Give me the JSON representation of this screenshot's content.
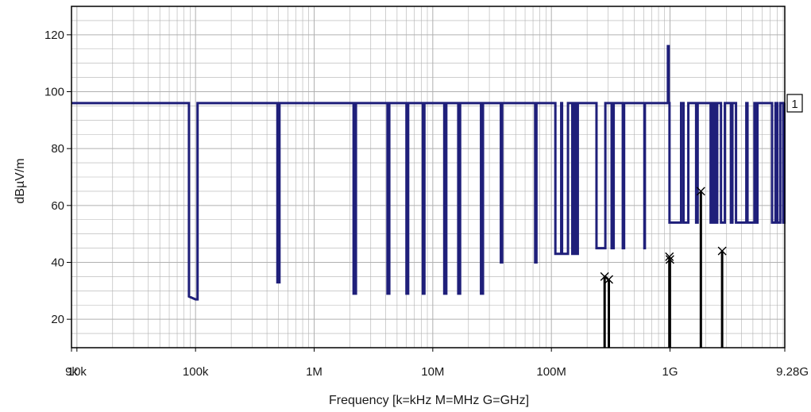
{
  "chart_data": {
    "type": "line",
    "xlabel": "Frequency [k=kHz M=MHz G=GHz]",
    "ylabel": "dBµV/m",
    "x_scale": "log",
    "xlim": [
      9000,
      9280000000
    ],
    "ylim": [
      10,
      130
    ],
    "x_ticks": [
      {
        "value": 9000,
        "label": "9k"
      },
      {
        "value": 10000,
        "label": "10k"
      },
      {
        "value": 100000,
        "label": "100k"
      },
      {
        "value": 1000000,
        "label": "1M"
      },
      {
        "value": 10000000,
        "label": "10M"
      },
      {
        "value": 100000000,
        "label": "100M"
      },
      {
        "value": 1000000000,
        "label": "1G"
      },
      {
        "value": 9280000000,
        "label": "9.28G"
      }
    ],
    "y_ticks": [
      20,
      40,
      60,
      80,
      100,
      120
    ],
    "grid": true,
    "limit_label": "1",
    "colors": {
      "limit": "#1f1f7a",
      "measurement": "#000000",
      "grid": "#b0b0b0"
    },
    "series": [
      {
        "role": "limit",
        "points": [
          [
            9000,
            96
          ],
          [
            88000,
            96
          ],
          [
            88000,
            28
          ],
          [
            100000,
            27
          ],
          [
            104000,
            27
          ],
          [
            104000,
            96
          ],
          [
            490000,
            96
          ],
          [
            490000,
            33
          ],
          [
            510000,
            33
          ],
          [
            510000,
            96
          ],
          [
            2150000,
            96
          ],
          [
            2150000,
            29
          ],
          [
            2250000,
            29
          ],
          [
            2250000,
            96
          ],
          [
            4150000,
            96
          ],
          [
            4150000,
            29
          ],
          [
            4300000,
            29
          ],
          [
            4300000,
            96
          ],
          [
            6000000,
            96
          ],
          [
            6000000,
            29
          ],
          [
            6200000,
            29
          ],
          [
            6200000,
            96
          ],
          [
            8250000,
            96
          ],
          [
            8250000,
            29
          ],
          [
            8500000,
            29
          ],
          [
            8500000,
            96
          ],
          [
            12500000,
            96
          ],
          [
            12500000,
            29
          ],
          [
            13000000,
            29
          ],
          [
            13000000,
            96
          ],
          [
            16400000,
            96
          ],
          [
            16400000,
            29
          ],
          [
            17000000,
            29
          ],
          [
            17000000,
            96
          ],
          [
            25500000,
            96
          ],
          [
            25500000,
            29
          ],
          [
            26500000,
            29
          ],
          [
            26500000,
            96
          ],
          [
            37500000,
            96
          ],
          [
            37500000,
            40
          ],
          [
            38500000,
            40
          ],
          [
            38500000,
            96
          ],
          [
            73000000,
            96
          ],
          [
            73000000,
            40
          ],
          [
            74800000,
            40
          ],
          [
            74800000,
            96
          ],
          [
            108000000,
            96
          ],
          [
            108000000,
            43
          ],
          [
            121000000,
            43
          ],
          [
            121000000,
            96
          ],
          [
            123000000,
            96
          ],
          [
            123000000,
            43
          ],
          [
            138000000,
            43
          ],
          [
            138000000,
            96
          ],
          [
            150000000,
            96
          ],
          [
            150000000,
            43
          ],
          [
            156000000,
            43
          ],
          [
            156000000,
            96
          ],
          [
            162000000,
            96
          ],
          [
            162000000,
            43
          ],
          [
            167000000,
            43
          ],
          [
            167000000,
            96
          ],
          [
            240000000,
            96
          ],
          [
            240000000,
            45
          ],
          [
            285000000,
            45
          ],
          [
            285000000,
            96
          ],
          [
            322000000,
            96
          ],
          [
            322000000,
            45
          ],
          [
            335000000,
            45
          ],
          [
            335000000,
            96
          ],
          [
            400000000,
            96
          ],
          [
            400000000,
            45
          ],
          [
            410000000,
            45
          ],
          [
            410000000,
            96
          ],
          [
            608000000,
            96
          ],
          [
            608000000,
            45
          ],
          [
            614000000,
            45
          ],
          [
            614000000,
            96
          ],
          [
            960000000,
            96
          ],
          [
            960000000,
            116
          ],
          [
            975000000,
            116
          ],
          [
            975000000,
            96
          ],
          [
            990000000,
            96
          ],
          [
            990000000,
            54
          ],
          [
            1240000000,
            54
          ],
          [
            1240000000,
            96
          ],
          [
            1300000000,
            96
          ],
          [
            1300000000,
            54
          ],
          [
            1427000000,
            54
          ],
          [
            1427000000,
            96
          ],
          [
            1660000000,
            96
          ],
          [
            1660000000,
            54
          ],
          [
            1710000000,
            54
          ],
          [
            1710000000,
            96
          ],
          [
            2200000000,
            96
          ],
          [
            2200000000,
            54
          ],
          [
            2300000000,
            54
          ],
          [
            2300000000,
            96
          ],
          [
            2310000000,
            96
          ],
          [
            2310000000,
            54
          ],
          [
            2390000000,
            54
          ],
          [
            2390000000,
            96
          ],
          [
            2483000000,
            96
          ],
          [
            2483000000,
            54
          ],
          [
            2500000000,
            54
          ],
          [
            2500000000,
            96
          ],
          [
            2690000000,
            96
          ],
          [
            2690000000,
            54
          ],
          [
            2900000000,
            54
          ],
          [
            2900000000,
            96
          ],
          [
            3260000000,
            96
          ],
          [
            3260000000,
            54
          ],
          [
            3267000000,
            54
          ],
          [
            3267000000,
            96
          ],
          [
            3332000000,
            96
          ],
          [
            3332000000,
            54
          ],
          [
            3339000000,
            54
          ],
          [
            3339000000,
            96
          ],
          [
            3345000000,
            96
          ],
          [
            3345000000,
            54
          ],
          [
            3358000000,
            54
          ],
          [
            3358000000,
            96
          ],
          [
            3600000000,
            96
          ],
          [
            3600000000,
            54
          ],
          [
            4400000000,
            54
          ],
          [
            4400000000,
            96
          ],
          [
            4500000000,
            96
          ],
          [
            4500000000,
            54
          ],
          [
            5150000000,
            54
          ],
          [
            5150000000,
            96
          ],
          [
            5350000000,
            96
          ],
          [
            5350000000,
            54
          ],
          [
            5460000000,
            54
          ],
          [
            5460000000,
            96
          ],
          [
            7250000000,
            96
          ],
          [
            7250000000,
            54
          ],
          [
            7750000000,
            54
          ],
          [
            7750000000,
            96
          ],
          [
            8025000000,
            96
          ],
          [
            8025000000,
            54
          ],
          [
            8500000000,
            54
          ],
          [
            8500000000,
            96
          ],
          [
            9000000000,
            96
          ],
          [
            9000000000,
            54
          ],
          [
            9200000000,
            54
          ],
          [
            9200000000,
            96
          ],
          [
            9280000000,
            96
          ]
        ]
      },
      {
        "role": "measurement",
        "peaks": [
          [
            281000000,
            35
          ],
          [
            305000000,
            34
          ],
          [
            988000000,
            42
          ],
          [
            998000000,
            41
          ],
          [
            1820000000,
            65
          ],
          [
            2750000000,
            44
          ]
        ]
      }
    ]
  }
}
